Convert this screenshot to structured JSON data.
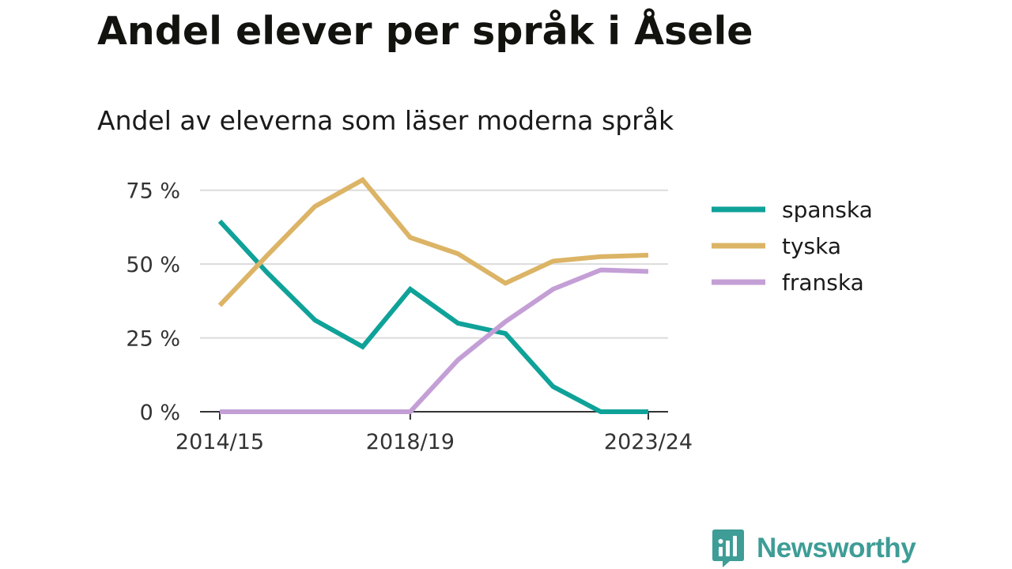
{
  "title": "Andel elever per språk i Åsele",
  "subtitle": "Andel av eleverna som läser moderna språk",
  "brand": {
    "name": "Newsworthy",
    "icon": "newsworthy-logo-icon",
    "color": "#3e9d96"
  },
  "chart_data": {
    "type": "line",
    "x": [
      "2014/15",
      "2015/16",
      "2016/17",
      "2017/18",
      "2018/19",
      "2019/20",
      "2020/21",
      "2021/22",
      "2022/23",
      "2023/24"
    ],
    "x_tick_labels": [
      "2014/15",
      "2018/19",
      "2023/24"
    ],
    "series": [
      {
        "name": "spanska",
        "color": "#0fa299",
        "values": [
          64.5,
          47,
          31,
          22,
          41.5,
          30,
          26.5,
          8.5,
          0,
          0
        ]
      },
      {
        "name": "tyska",
        "color": "#dcb466",
        "values": [
          36,
          53,
          69.5,
          78.5,
          59,
          53.5,
          43.5,
          51,
          52.5,
          53
        ]
      },
      {
        "name": "franska",
        "color": "#c49fd6",
        "values": [
          0,
          0,
          0,
          0,
          0,
          17.5,
          30.5,
          41.5,
          48,
          47.5
        ]
      }
    ],
    "y_ticks": [
      "0 %",
      "25 %",
      "50 %",
      "75 %"
    ],
    "ylim": [
      0,
      80
    ],
    "grid": true,
    "legend_position": "right"
  }
}
